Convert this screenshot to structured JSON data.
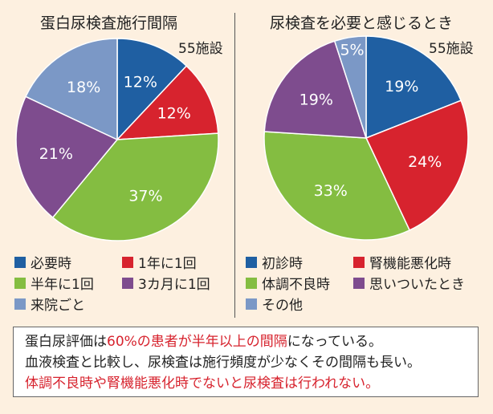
{
  "colors": {
    "blue": "#1f5fa2",
    "red": "#d7232e",
    "green": "#84bd41",
    "purple": "#7e4c8e",
    "lightblue": "#7b98c6"
  },
  "chart_data": [
    {
      "type": "pie",
      "title": "蛋白尿検査施行間隔",
      "n_label": "55施設",
      "slices": [
        {
          "name": "必要時",
          "value": 12,
          "label": "12%",
          "color": "#1f5fa2"
        },
        {
          "name": "1年に1回",
          "value": 12,
          "label": "12%",
          "color": "#d7232e"
        },
        {
          "name": "半年に1回",
          "value": 37,
          "label": "37%",
          "color": "#84bd41"
        },
        {
          "name": "3カ月に1回",
          "value": 21,
          "label": "21%",
          "color": "#7e4c8e"
        },
        {
          "name": "来院ごと",
          "value": 18,
          "label": "18%",
          "color": "#7b98c6"
        }
      ]
    },
    {
      "type": "pie",
      "title": "尿検査を必要と感じるとき",
      "n_label": "55施設",
      "slices": [
        {
          "name": "初診時",
          "value": 19,
          "label": "19%",
          "color": "#1f5fa2"
        },
        {
          "name": "腎機能悪化時",
          "value": 24,
          "label": "24%",
          "color": "#d7232e"
        },
        {
          "name": "体調不良時",
          "value": 33,
          "label": "33%",
          "color": "#84bd41"
        },
        {
          "name": "思いついたとき",
          "value": 19,
          "label": "19%",
          "color": "#7e4c8e"
        },
        {
          "name": "その他",
          "value": 5,
          "label": "5%",
          "color": "#7b98c6"
        }
      ]
    }
  ],
  "summary": {
    "l1a": "蛋白尿評価は",
    "l1b": "60%の患者が半年以上の間隔",
    "l1c": "になっている。",
    "l2": "血液検査と比較し、尿検査は施行頻度が少なくその間隔も長い。",
    "l3": "体調不良時や腎機能悪化時でないと尿検査は行われない。"
  }
}
